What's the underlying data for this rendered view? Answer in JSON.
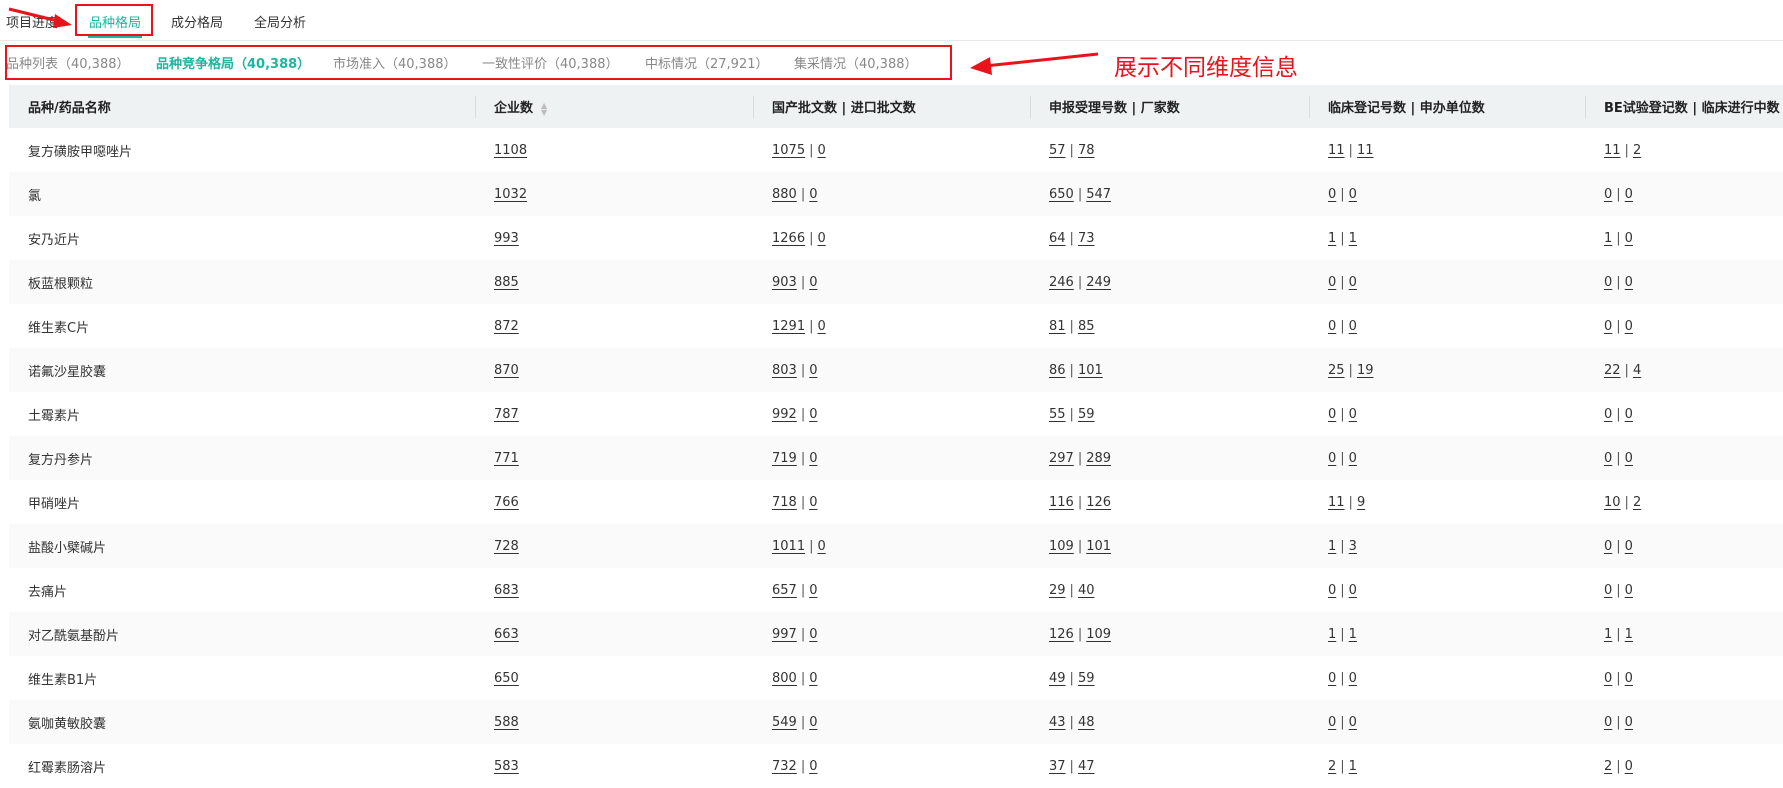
{
  "top_tabs": [
    {
      "label": "项目进度",
      "active": false
    },
    {
      "label": "品种格局",
      "active": true
    },
    {
      "label": "成分格局",
      "active": false
    },
    {
      "label": "全局分析",
      "active": false
    }
  ],
  "sub_tabs": [
    {
      "label": "品种列表（40,388）",
      "active": false
    },
    {
      "label": "品种竞争格局（40,388）",
      "active": true
    },
    {
      "label": "市场准入（40,388）",
      "active": false
    },
    {
      "label": "一致性评价（40,388）",
      "active": false
    },
    {
      "label": "中标情况（27,921）",
      "active": false
    },
    {
      "label": "集采情况（40,388）",
      "active": false
    }
  ],
  "annotation": "展示不同维度信息",
  "colors": {
    "accent": "#1fb5a0",
    "annotation": "#e8141b",
    "header_bg": "#eef2f3"
  },
  "table": {
    "columns": [
      "品种/药品名称",
      "企业数",
      "国产批文数 | 进口批文数",
      "申报受理号数 | 厂家数",
      "临床登记号数 | 申办单位数",
      "BE试验登记数 | 临床进行中数"
    ],
    "sortable_column": "企业数",
    "rows": [
      {
        "name": "复方磺胺甲噁唑片",
        "companies": "1108",
        "approvals": [
          "1075",
          "0"
        ],
        "applications": [
          "57",
          "78"
        ],
        "clinical": [
          "11",
          "11"
        ],
        "be": [
          "11",
          "2"
        ]
      },
      {
        "name": "氯",
        "companies": "1032",
        "approvals": [
          "880",
          "0"
        ],
        "applications": [
          "650",
          "547"
        ],
        "clinical": [
          "0",
          "0"
        ],
        "be": [
          "0",
          "0"
        ]
      },
      {
        "name": "安乃近片",
        "companies": "993",
        "approvals": [
          "1266",
          "0"
        ],
        "applications": [
          "64",
          "73"
        ],
        "clinical": [
          "1",
          "1"
        ],
        "be": [
          "1",
          "0"
        ]
      },
      {
        "name": "板蓝根颗粒",
        "companies": "885",
        "approvals": [
          "903",
          "0"
        ],
        "applications": [
          "246",
          "249"
        ],
        "clinical": [
          "0",
          "0"
        ],
        "be": [
          "0",
          "0"
        ]
      },
      {
        "name": "维生素C片",
        "companies": "872",
        "approvals": [
          "1291",
          "0"
        ],
        "applications": [
          "81",
          "85"
        ],
        "clinical": [
          "0",
          "0"
        ],
        "be": [
          "0",
          "0"
        ]
      },
      {
        "name": "诺氟沙星胶囊",
        "companies": "870",
        "approvals": [
          "803",
          "0"
        ],
        "applications": [
          "86",
          "101"
        ],
        "clinical": [
          "25",
          "19"
        ],
        "be": [
          "22",
          "4"
        ]
      },
      {
        "name": "土霉素片",
        "companies": "787",
        "approvals": [
          "992",
          "0"
        ],
        "applications": [
          "55",
          "59"
        ],
        "clinical": [
          "0",
          "0"
        ],
        "be": [
          "0",
          "0"
        ]
      },
      {
        "name": "复方丹参片",
        "companies": "771",
        "approvals": [
          "719",
          "0"
        ],
        "applications": [
          "297",
          "289"
        ],
        "clinical": [
          "0",
          "0"
        ],
        "be": [
          "0",
          "0"
        ]
      },
      {
        "name": "甲硝唑片",
        "companies": "766",
        "approvals": [
          "718",
          "0"
        ],
        "applications": [
          "116",
          "126"
        ],
        "clinical": [
          "11",
          "9"
        ],
        "be": [
          "10",
          "2"
        ]
      },
      {
        "name": "盐酸小檗碱片",
        "companies": "728",
        "approvals": [
          "1011",
          "0"
        ],
        "applications": [
          "109",
          "101"
        ],
        "clinical": [
          "1",
          "3"
        ],
        "be": [
          "0",
          "0"
        ]
      },
      {
        "name": "去痛片",
        "companies": "683",
        "approvals": [
          "657",
          "0"
        ],
        "applications": [
          "29",
          "40"
        ],
        "clinical": [
          "0",
          "0"
        ],
        "be": [
          "0",
          "0"
        ]
      },
      {
        "name": "对乙酰氨基酚片",
        "companies": "663",
        "approvals": [
          "997",
          "0"
        ],
        "applications": [
          "126",
          "109"
        ],
        "clinical": [
          "1",
          "1"
        ],
        "be": [
          "1",
          "1"
        ]
      },
      {
        "name": "维生素B1片",
        "companies": "650",
        "approvals": [
          "800",
          "0"
        ],
        "applications": [
          "49",
          "59"
        ],
        "clinical": [
          "0",
          "0"
        ],
        "be": [
          "0",
          "0"
        ]
      },
      {
        "name": "氨咖黄敏胶囊",
        "companies": "588",
        "approvals": [
          "549",
          "0"
        ],
        "applications": [
          "43",
          "48"
        ],
        "clinical": [
          "0",
          "0"
        ],
        "be": [
          "0",
          "0"
        ]
      },
      {
        "name": "红霉素肠溶片",
        "companies": "583",
        "approvals": [
          "732",
          "0"
        ],
        "applications": [
          "37",
          "47"
        ],
        "clinical": [
          "2",
          "1"
        ],
        "be": [
          "2",
          "0"
        ]
      }
    ]
  }
}
